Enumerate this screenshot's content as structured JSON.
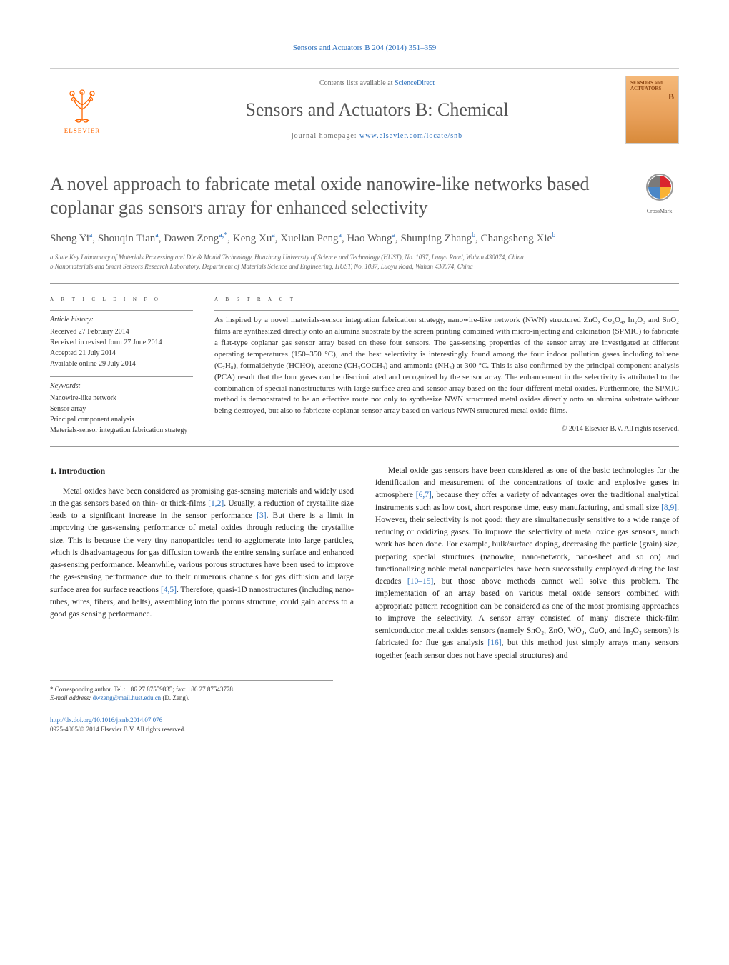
{
  "header": {
    "citation": "Sensors and Actuators B 204 (2014) 351–359",
    "contents_prefix": "Contents lists available at ",
    "contents_link": "ScienceDirect",
    "journal_name": "Sensors and Actuators B: Chemical",
    "homepage_prefix": "journal homepage: ",
    "homepage_link": "www.elsevier.com/locate/snb",
    "publisher": "ELSEVIER",
    "cover_line1": "SENSORS and",
    "cover_line2": "ACTUATORS",
    "cover_line3": "B"
  },
  "crossmark": {
    "label": "CrossMark"
  },
  "article": {
    "title": "A novel approach to fabricate metal oxide nanowire-like networks based coplanar gas sensors array for enhanced selectivity",
    "authors_html": "Sheng Yi<sup>a</sup>, Shouqin Tian<sup>a</sup>, Dawen Zeng<sup>a,*</sup>, Keng Xu<sup>a</sup>, Xuelian Peng<sup>a</sup>, Hao Wang<sup>a</sup>, Shunping Zhang<sup>b</sup>, Changsheng Xie<sup>b</sup>",
    "affiliations": {
      "a": "a State Key Laboratory of Materials Processing and Die & Mould Technology, Huazhong University of Science and Technology (HUST), No. 1037, Luoyu Road, Wuhan 430074, China",
      "b": "b Nanomaterials and Smart Sensors Research Laboratory, Department of Materials Science and Engineering, HUST, No. 1037, Luoyu Road, Wuhan 430074, China"
    }
  },
  "info": {
    "heading": "A R T I C L E   I N F O",
    "history_heading": "Article history:",
    "history": [
      "Received 27 February 2014",
      "Received in revised form 27 June 2014",
      "Accepted 21 July 2014",
      "Available online 29 July 2014"
    ],
    "keywords_heading": "Keywords:",
    "keywords": [
      "Nanowire-like network",
      "Sensor array",
      "Principal component analysis",
      "Materials-sensor integration fabrication strategy"
    ]
  },
  "abstract": {
    "heading": "A B S T R A C T",
    "text": "As inspired by a novel materials-sensor integration fabrication strategy, nanowire-like network (NWN) structured ZnO, Co₃O₄, In₂O₃ and SnO₂ films are synthesized directly onto an alumina substrate by the screen printing combined with micro-injecting and calcination (SPMIC) to fabricate a flat-type coplanar gas sensor array based on these four sensors. The gas-sensing properties of the sensor array are investigated at different operating temperatures (150–350 °C), and the best selectivity is interestingly found among the four indoor pollution gases including toluene (C₇H₈), formaldehyde (HCHO), acetone (CH₃COCH₃) and ammonia (NH₃) at 300 °C. This is also confirmed by the principal component analysis (PCA) result that the four gases can be discriminated and recognized by the sensor array. The enhancement in the selectivity is attributed to the combination of special nanostructures with large surface area and sensor array based on the four different metal oxides. Furthermore, the SPMIC method is demonstrated to be an effective route not only to synthesize NWN structured metal oxides directly onto an alumina substrate without being destroyed, but also to fabricate coplanar sensor array based on various NWN structured metal oxide films.",
    "copyright": "© 2014 Elsevier B.V. All rights reserved."
  },
  "body": {
    "section_heading": "1. Introduction",
    "col1_p1": "Metal oxides have been considered as promising gas-sensing materials and widely used in the gas sensors based on thin- or thick-films [1,2]. Usually, a reduction of crystallite size leads to a significant increase in the sensor performance [3]. But there is a limit in improving the gas-sensing performance of metal oxides through reducing the crystallite size. This is because the very tiny nanoparticles tend to agglomerate into large particles, which is disadvantageous for gas diffusion towards the entire sensing surface and enhanced gas-sensing performance. Meanwhile, various porous structures have been used to improve the gas-sensing performance due to their numerous channels for gas diffusion and large surface area for surface reactions [4,5]. Therefore, quasi-1D nanostructures (including nano-tubes, wires, fibers, and belts), assembling into the porous structure, could gain access to a good gas sensing performance.",
    "col2_p1": "Metal oxide gas sensors have been considered as one of the basic technologies for the identification and measurement of the concentrations of toxic and explosive gases in atmosphere [6,7], because they offer a variety of advantages over the traditional analytical instruments such as low cost, short response time, easy manufacturing, and small size [8,9]. However, their selectivity is not good: they are simultaneously sensitive to a wide range of reducing or oxidizing gases. To improve the selectivity of metal oxide gas sensors, much work has been done. For example, bulk/surface doping, decreasing the particle (grain) size, preparing special structures (nanowire, nano-network, nano-sheet and so on) and functionalizing noble metal nanoparticles have been successfully employed during the last decades [10–15], but those above methods cannot well solve this problem. The implementation of an array based on various metal oxide sensors combined with appropriate pattern recognition can be considered as one of the most promising approaches to improve the selectivity. A sensor array consisted of many discrete thick-film semiconductor metal oxides sensors (namely SnO₂, ZnO, WO₃, CuO, and In₂O₃ sensors) is fabricated for flue gas analysis [16], but this method just simply arrays many sensors together (each sensor does not have special structures) and"
  },
  "footnotes": {
    "corr": "* Corresponding author. Tel.: +86 27 87559835; fax: +86 27 87543778.",
    "email_label": "E-mail address: ",
    "email": "dwzeng@mail.hust.edu.cn",
    "email_name": " (D. Zeng)."
  },
  "doi": {
    "link": "http://dx.doi.org/10.1016/j.snb.2014.07.076",
    "issn": "0925-4005/© 2014 Elsevier B.V. All rights reserved."
  },
  "colors": {
    "link": "#2a6ebb",
    "text": "#333333",
    "heading": "#565656",
    "elsevier": "#ff6600",
    "cover_top": "#f5b878",
    "cover_bottom": "#d88a3a"
  }
}
